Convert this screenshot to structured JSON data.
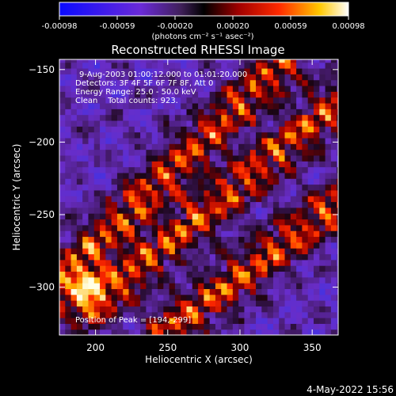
{
  "chart_data": {
    "type": "heatmap",
    "title": "Reconstructed RHESSI Image",
    "xlabel": "Heliocentric X (arcsec)",
    "ylabel": "Heliocentric Y (arcsec)",
    "xlim": [
      175,
      368
    ],
    "ylim": [
      -333,
      -143
    ],
    "x_ticks": [
      200,
      250,
      300,
      350
    ],
    "y_ticks": [
      -150,
      -200,
      -250,
      -300
    ],
    "colorbar": {
      "ticks": [
        "-0.00098",
        "-0.00059",
        "-0.00020",
        "0.00020",
        "0.00059",
        "0.00098"
      ],
      "min": -0.00098,
      "max": 0.00098,
      "unit_label": "(photons cm⁻² s⁻¹ asec⁻²)"
    },
    "annotations": [
      "9-Aug-2003 01:00:12.000 to 01:01:20.000",
      "Detectors: 3F 4F 5F 6F 7F 8F, Att 0",
      "Energy Range: 25.0 - 50.0 keV",
      "Clean    Total counts: 923.",
      "Position of Peak = [194,-299]"
    ],
    "peak": [
      194,
      -299
    ],
    "bright_ridges": [
      {
        "x0": 168,
        "y0": -300,
        "x1": 330,
        "y1": -145
      },
      {
        "x0": 195,
        "y0": -315,
        "x1": 365,
        "y1": -175
      },
      {
        "x0": 250,
        "y0": -330,
        "x1": 370,
        "y1": -240
      }
    ]
  },
  "timestamp": "4-May-2022 15:56"
}
